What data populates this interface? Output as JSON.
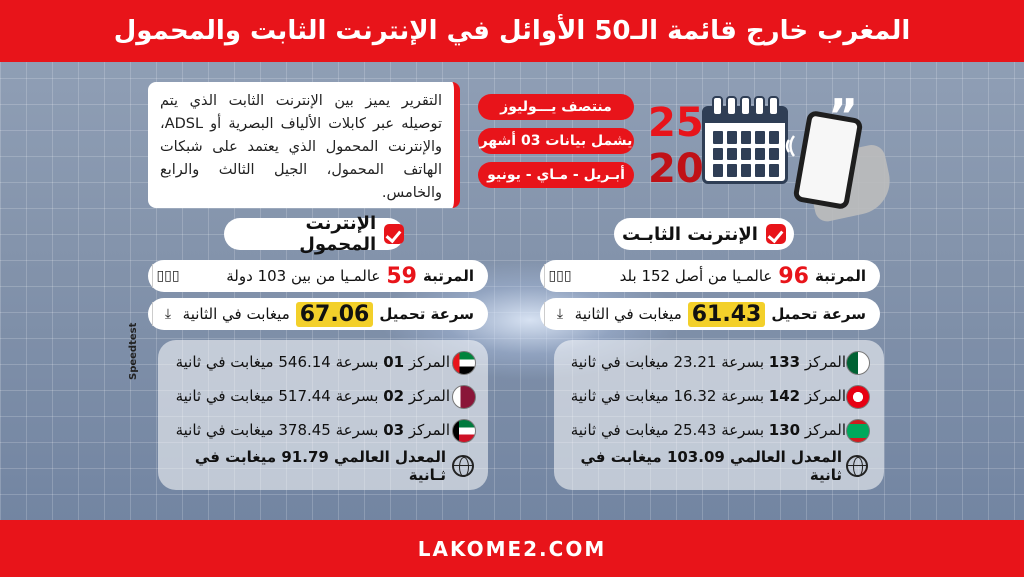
{
  "header": {
    "title": "المغرب خارج قائمة الـ50 الأوائل في الإنترنت الثابت والمحمول"
  },
  "footer": {
    "site": "LAKOME2.COM"
  },
  "intro": {
    "description": "التقرير يميز بين الإنترنت الثابت الذي يتم توصيله عبر كابلات الألياف البصرية أو ADSL، والإنترنت المحمول الذي يعتمد على شبكات الهاتف المحمول، الجيل الثالث والرابع والخامس.",
    "tags": [
      "منتصف يـــوليوز",
      "يشمل بيانات 03 أشهر",
      "أبـريل - مـاي - يونيو"
    ],
    "year_top": "25",
    "year_bottom": "20"
  },
  "fixed": {
    "title": "الإنترنت الثابـت",
    "rank_label": "المرتبة",
    "rank_value": "96",
    "rank_suffix": "عالمـيا من أصل 152 بلد",
    "speed_label": "سرعة تحميل",
    "speed_value": "61.43",
    "speed_suffix": "ميغابت في الثانية",
    "neighbors": [
      {
        "country_flag": "algeria",
        "text_prefix": "المركز",
        "rank": "133",
        "text_suffix": "بسرعة 23.21 ميغابت في ثانية"
      },
      {
        "country_flag": "tunisia",
        "text_prefix": "المركز",
        "rank": "142",
        "text_suffix": "بسرعة 16.32 ميغابت في ثانية"
      },
      {
        "country_flag": "mauritania",
        "text_prefix": "المركز",
        "rank": "130",
        "text_suffix": "بسرعة 25.43 ميغابت في ثانية"
      }
    ],
    "global_avg": "المعدل العالمي 103.09 ميغابت في ثانية"
  },
  "mobile": {
    "title": "الإنترنت المحمول",
    "rank_label": "المرتبة",
    "rank_value": "59",
    "rank_suffix": "عالمـيا من بين 103 دولة",
    "speed_label": "سرعة تحميل",
    "speed_value": "67.06",
    "speed_suffix": "ميغابت في الثانية",
    "leaders": [
      {
        "country_flag": "uae",
        "text_prefix": "المركز",
        "rank": "01",
        "text_suffix": "بسرعة 546.14 ميغابت في ثانية"
      },
      {
        "country_flag": "qatar",
        "text_prefix": "المركز",
        "rank": "02",
        "text_suffix": "بسرعة 517.44 ميغابت في ثانية"
      },
      {
        "country_flag": "kuwait",
        "text_prefix": "المركز",
        "rank": "03",
        "text_suffix": "بسرعة 378.45 ميغابت في ثانية"
      }
    ],
    "global_avg": "المعدل العالمي 91.79 ميغابت في ثـانية"
  },
  "source": {
    "label": "Speedtest"
  },
  "icons": {
    "rank": "bar-chart-icon",
    "speed": "download-icon",
    "globe": "globe-icon"
  },
  "colors": {
    "brand_red": "#e8141a",
    "highlight_yellow": "#f3d02a"
  }
}
